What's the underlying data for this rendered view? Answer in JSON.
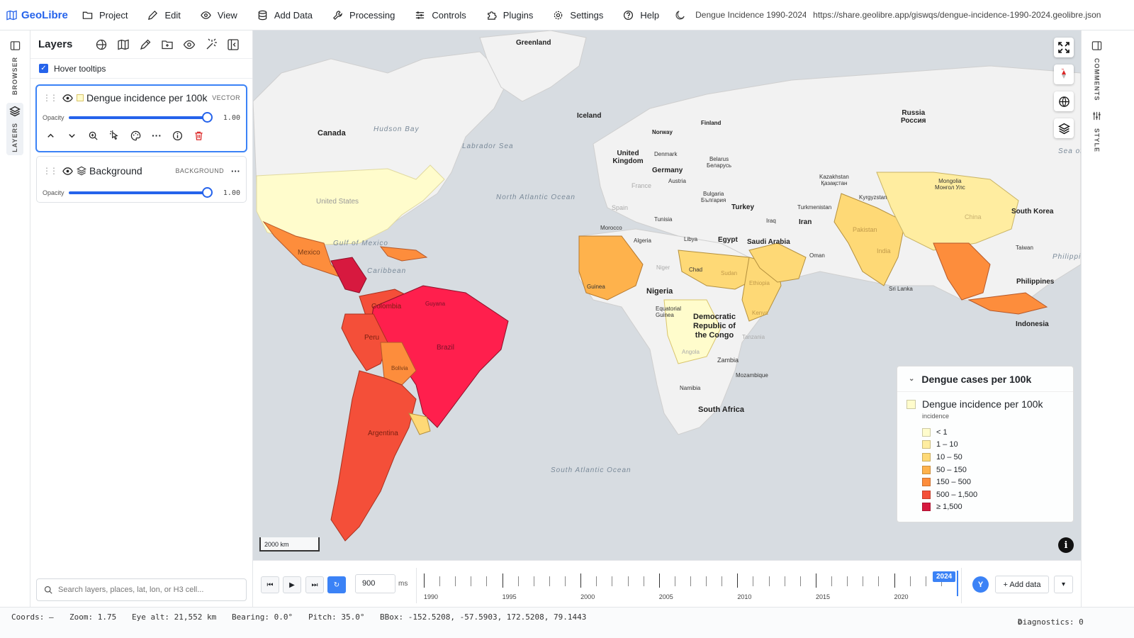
{
  "app": {
    "name": "GeoLibre"
  },
  "menu": {
    "items": [
      {
        "label": "Project",
        "icon": "folder-icon"
      },
      {
        "label": "Edit",
        "icon": "pencil-icon"
      },
      {
        "label": "View",
        "icon": "eye-icon"
      },
      {
        "label": "Add Data",
        "icon": "database-icon"
      },
      {
        "label": "Processing",
        "icon": "wrench-icon"
      },
      {
        "label": "Controls",
        "icon": "sliders-icon"
      },
      {
        "label": "Plugins",
        "icon": "puzzle-icon"
      },
      {
        "label": "Settings",
        "icon": "gear-icon"
      },
      {
        "label": "Help",
        "icon": "help-icon"
      }
    ]
  },
  "project": {
    "title": "Dengue Incidence 1990-2024",
    "url": "https://share.geolibre.app/giswqs/dengue-incidence-1990-2024.geolibre.json"
  },
  "left_rail": {
    "tabs": [
      "BROWSER",
      "LAYERS"
    ]
  },
  "right_rail": {
    "tabs": [
      "COMMENTS",
      "STYLE"
    ]
  },
  "layers_panel": {
    "title": "Layers",
    "hover_tooltips": {
      "label": "Hover tooltips",
      "checked": true
    },
    "opacity_label": "Opacity",
    "layers": [
      {
        "name": "Dengue incidence per 100k",
        "type": "VECTOR",
        "opacity_value": "1.00",
        "opacity": 1.0,
        "selected": true
      },
      {
        "name": "Background",
        "type": "BACKGROUND",
        "opacity_value": "1.00",
        "opacity": 1.0,
        "selected": false
      }
    ],
    "search_placeholder": "Search layers, places, lat, lon, or H3 cell..."
  },
  "map": {
    "scale_label": "2000 km",
    "labels": {
      "greenland": "Greenland",
      "iceland": "Iceland",
      "canada": "Canada",
      "hudson_bay": "Hudson Bay",
      "labrador_sea": "Labrador Sea",
      "north_atlantic": "North Atlantic Ocean",
      "united_states": "United States",
      "gulf_mexico": "Gulf of Mexico",
      "mexico": "Mexico",
      "caribbean": "Caribbean",
      "colombia": "Colombia",
      "brazil": "Brazil",
      "peru": "Peru",
      "bolivia": "Bolivia",
      "argentina": "Argentina",
      "guyana": "Guyana",
      "south_atlantic": "South Atlantic Ocean",
      "norway": "Norway",
      "finland": "Finland",
      "russia": "Russia",
      "russia_local": "Россия",
      "uk": "United Kingdom",
      "denmark": "Denmark",
      "germany": "Germany",
      "belarus": "Belarus",
      "belarus_local": "Беларусь",
      "austria": "Austria",
      "france": "France",
      "spain": "Spain",
      "bulgaria": "Bulgaria",
      "bulgaria_local": "България",
      "turkey": "Turkey",
      "kazakhstan": "Kazakhstan",
      "kazakhstan_local": "Қазақстан",
      "mongolia": "Mongolia",
      "mongolia_local": "Монгол Улс",
      "kyrgyzstan": "Kyrgyzstan",
      "turkmenistan": "Turkmenistan",
      "morocco": "Morocco",
      "algeria": "Algeria",
      "tunisia": "Tunisia",
      "libya": "Libya",
      "egypt": "Egypt",
      "iraq": "Iraq",
      "iran": "Iran",
      "saudi": "Saudi Arabia",
      "oman": "Oman",
      "pakistan": "Pakistan",
      "india": "India",
      "china": "China",
      "south_korea": "South Korea",
      "taiwan": "Taiwan",
      "philippines": "Philippines",
      "philippine_sea": "Philippine Sea",
      "indonesia": "Indonesia",
      "sri_lanka": "Sri Lanka",
      "chad": "Chad",
      "niger": "Niger",
      "nigeria": "Nigeria",
      "sudan": "Sudan",
      "ethiopia": "Ethiopia",
      "kenya": "Kenya",
      "drc": "Democratic Republic of the Congo",
      "tanzania": "Tanzania",
      "angola": "Angola",
      "zambia": "Zambia",
      "mozambique": "Mozambique",
      "namibia": "Namibia",
      "south_africa": "South Africa",
      "guinea": "Guinea",
      "eq_guinea": "Equatorial Guinea",
      "sea_okhotsk": "Sea of Okhotsk"
    }
  },
  "legend": {
    "title": "Dengue cases per 100k",
    "layer_name": "Dengue incidence per 100k",
    "field": "incidence",
    "classes": [
      {
        "label": "< 1",
        "color": "#fffccc"
      },
      {
        "label": "1 – 10",
        "color": "#ffeda0"
      },
      {
        "label": "10 – 50",
        "color": "#fed976"
      },
      {
        "label": "50 – 150",
        "color": "#feb24c"
      },
      {
        "label": "150 – 500",
        "color": "#fd8d3c"
      },
      {
        "label": "500 – 1,500",
        "color": "#f44f39"
      },
      {
        "label": "≥ 1,500",
        "color": "#d7193f"
      }
    ]
  },
  "timeline": {
    "interval": "900",
    "unit": "ms",
    "year_labels": [
      "1990",
      "1995",
      "2000",
      "2005",
      "2010",
      "2015",
      "2020"
    ],
    "current_year": "2024",
    "avatar": "Y",
    "add_data": "+ Add data",
    "dropdown": "▾"
  },
  "status": {
    "coords": "Coords: —",
    "zoom": "Zoom: 1.75",
    "eye_alt": "Eye alt: 21,552 km",
    "bearing": "Bearing: 0.0°",
    "pitch": "Pitch: 35.0°",
    "bbox": "BBox: -152.5208, -57.5903, 172.5208, 79.1443",
    "diagnostics": "Diagnostics: 0"
  },
  "colors": {
    "accent": "#2563eb",
    "water": "#d7dce1",
    "land": "#f2f2f2",
    "delete": "#dc2626"
  }
}
